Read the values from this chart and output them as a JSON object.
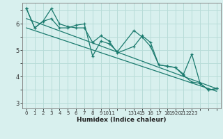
{
  "xlabel": "Humidex (Indice chaleur)",
  "bg_color": "#d8f0ee",
  "grid_color": "#b8dcd8",
  "line_color": "#1a7a6e",
  "xlim": [
    -0.5,
    23.5
  ],
  "ylim": [
    2.8,
    6.8
  ],
  "xtick_pos": [
    0,
    1,
    2,
    3,
    4,
    5,
    6,
    7,
    8,
    9,
    10,
    11,
    13,
    14,
    15,
    16,
    17,
    18,
    19,
    20,
    21,
    22,
    23
  ],
  "xtick_lab": [
    "0",
    "1",
    "2",
    "3",
    "4",
    "5",
    "6",
    "7",
    "8",
    "9",
    "1011",
    "",
    "1314",
    "15",
    "16",
    "17",
    "18",
    "1920",
    "21",
    "2223",
    "",
    "",
    ""
  ],
  "yticks": [
    3,
    4,
    5,
    6
  ],
  "line1_x": [
    0,
    1,
    2,
    3,
    4,
    5,
    6,
    7,
    8,
    9,
    10,
    11,
    13,
    14,
    15,
    16,
    17,
    18,
    19,
    20,
    21,
    22,
    23
  ],
  "line1_y": [
    6.58,
    5.85,
    6.1,
    6.2,
    5.85,
    5.85,
    5.95,
    6.0,
    4.78,
    5.35,
    5.25,
    4.95,
    5.75,
    5.5,
    5.15,
    4.45,
    4.4,
    4.35,
    4.05,
    3.8,
    3.75,
    3.5,
    3.55
  ],
  "line2_x": [
    0,
    1,
    2,
    3,
    4,
    5,
    6,
    7,
    8,
    9,
    10,
    11,
    13,
    14,
    15,
    16,
    17,
    18,
    19,
    20,
    21,
    22,
    23
  ],
  "line2_y": [
    6.58,
    5.85,
    6.1,
    6.58,
    6.0,
    5.9,
    5.85,
    5.85,
    5.3,
    5.55,
    5.35,
    4.9,
    5.15,
    5.55,
    5.3,
    4.45,
    4.4,
    4.35,
    4.1,
    4.85,
    3.75,
    3.5,
    3.55
  ],
  "trend1_x": [
    0,
    23
  ],
  "trend1_y": [
    6.2,
    3.55
  ],
  "trend2_x": [
    0,
    23
  ],
  "trend2_y": [
    5.85,
    3.45
  ]
}
